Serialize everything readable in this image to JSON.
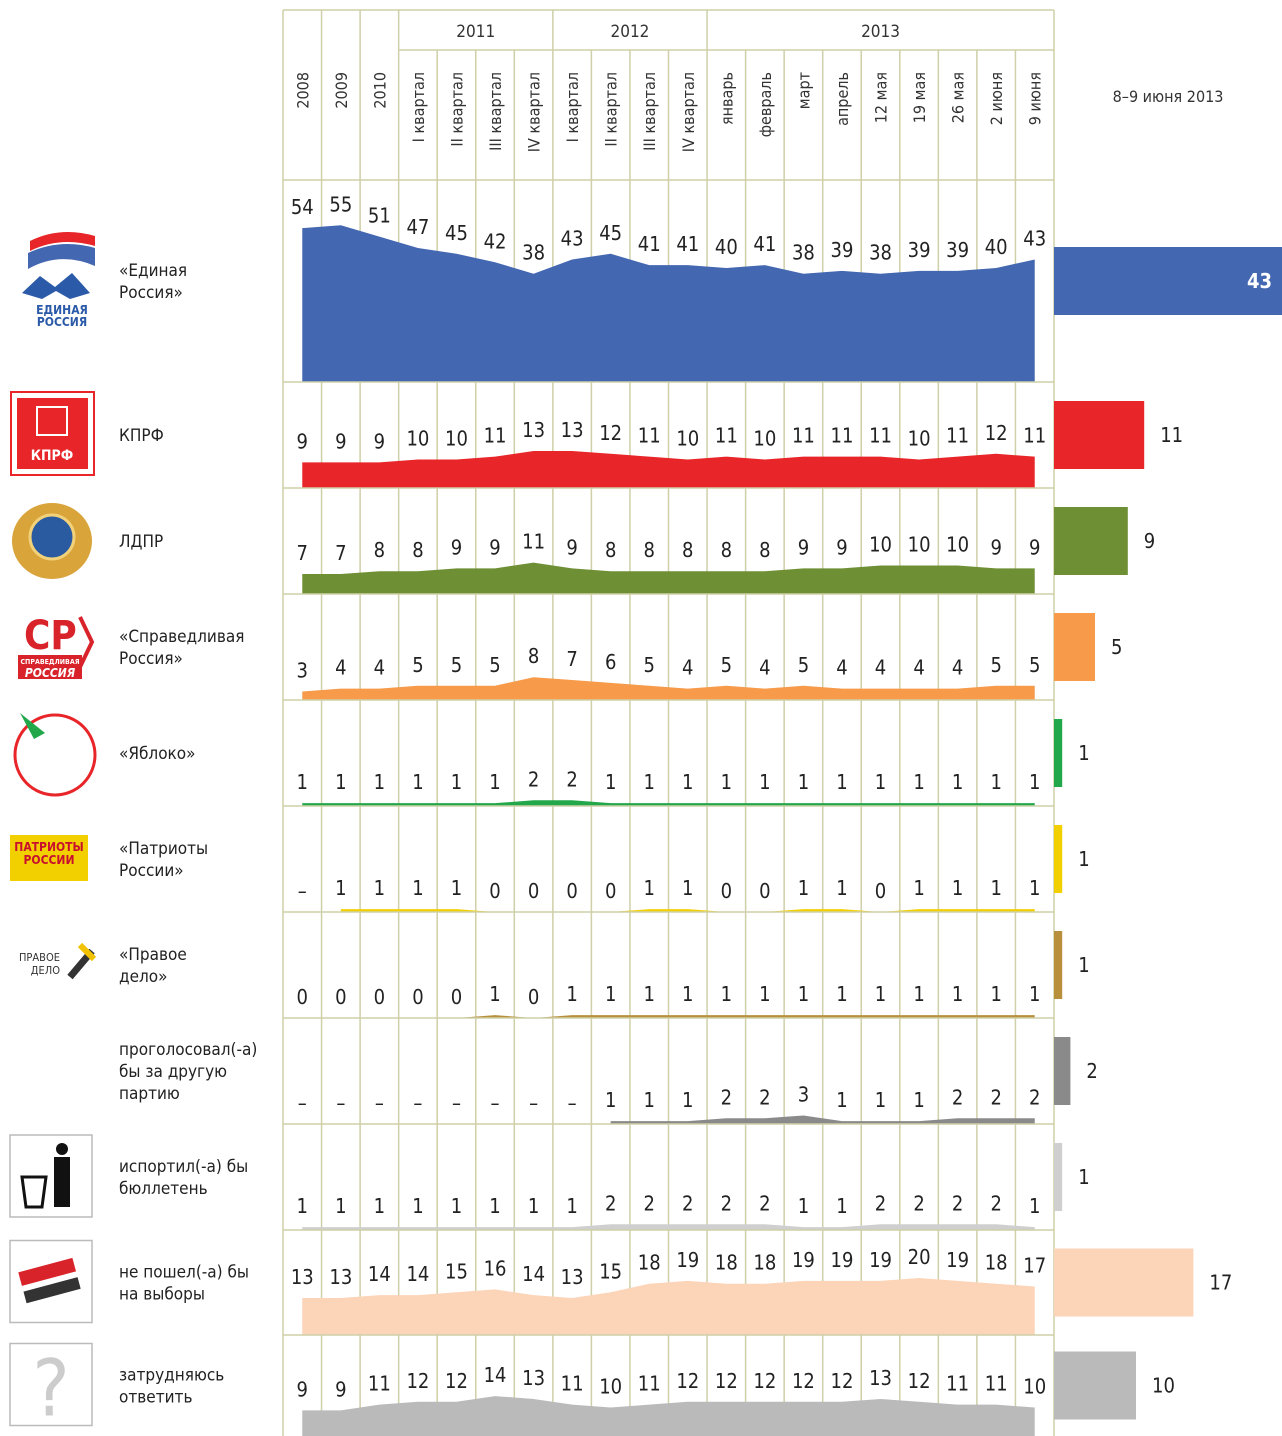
{
  "chart_data": {
    "type": "area",
    "categories": [
      "2008",
      "2009",
      "2010",
      "I квартал",
      "II квартал",
      "III квартал",
      "IV квартал",
      "I квартал",
      "II квартал",
      "III квартал",
      "IV квартал",
      "январь",
      "февраль",
      "март",
      "апрель",
      "12 мая",
      "19 мая",
      "26 мая",
      "2 июня",
      "9 июня"
    ],
    "category_groups": [
      {
        "name": "2011",
        "count": 4
      },
      {
        "name": "2012",
        "count": 4
      },
      {
        "name": "2013",
        "count": 9
      }
    ],
    "snapshot_title": "8–9 июня 2013",
    "series": [
      {
        "name_lines": [
          "«Единая",
          "Россия»"
        ],
        "logo_lines": [
          "ЕДИНАЯ",
          "РОССИЯ"
        ],
        "color": "#4467b1",
        "values": [
          54,
          55,
          51,
          47,
          45,
          42,
          38,
          43,
          45,
          41,
          41,
          40,
          41,
          38,
          39,
          38,
          39,
          39,
          40,
          43
        ],
        "current": 43
      },
      {
        "name_lines": [
          "КПРФ"
        ],
        "logo_lines": [
          "КПРФ"
        ],
        "color": "#e8262a",
        "values": [
          9,
          9,
          9,
          10,
          10,
          11,
          13,
          13,
          12,
          11,
          10,
          11,
          10,
          11,
          11,
          11,
          10,
          11,
          12,
          11
        ],
        "current": 11
      },
      {
        "name_lines": [
          "ЛДПР"
        ],
        "color": "#6f8f35",
        "values": [
          7,
          7,
          8,
          8,
          9,
          9,
          11,
          9,
          8,
          8,
          8,
          8,
          8,
          9,
          9,
          10,
          10,
          10,
          9,
          9
        ],
        "current": 9
      },
      {
        "name_lines": [
          "«Справедливая",
          "Россия»"
        ],
        "logo_lines": [
          "СР",
          "СПРАВЕДЛИВАЯ",
          "РОССИЯ"
        ],
        "color": "#f79a4a",
        "values": [
          3,
          4,
          4,
          5,
          5,
          5,
          8,
          7,
          6,
          5,
          4,
          5,
          4,
          5,
          4,
          4,
          4,
          4,
          5,
          5
        ],
        "current": 5
      },
      {
        "name_lines": [
          "«Яблоко»"
        ],
        "color": "#22a84a",
        "values": [
          1,
          1,
          1,
          1,
          1,
          1,
          2,
          2,
          1,
          1,
          1,
          1,
          1,
          1,
          1,
          1,
          1,
          1,
          1,
          1
        ],
        "current": 1
      },
      {
        "name_lines": [
          "«Патриоты",
          "России»"
        ],
        "logo_lines": [
          "ПАТРИОТЫ",
          "РОССИИ"
        ],
        "color": "#f2d000",
        "values": [
          null,
          1,
          1,
          1,
          1,
          0,
          0,
          0,
          0,
          1,
          1,
          0,
          0,
          1,
          1,
          0,
          1,
          1,
          1,
          1
        ],
        "value_labels": [
          "–",
          "1",
          "1",
          "1",
          "1",
          "0",
          "0",
          "0",
          "0",
          "1",
          "1",
          "0",
          "0",
          "1",
          "1",
          "0",
          "1",
          "1",
          "1",
          "1"
        ],
        "current": 1
      },
      {
        "name_lines": [
          "«Правое",
          "дело»"
        ],
        "logo_lines": [
          "ПРАВОЕ",
          "ДЕЛО"
        ],
        "color": "#b8903c",
        "values": [
          0,
          0,
          0,
          0,
          0,
          1,
          0,
          1,
          1,
          1,
          1,
          1,
          1,
          1,
          1,
          1,
          1,
          1,
          1,
          1
        ],
        "current": 1
      },
      {
        "name_lines": [
          "проголосовал(-а)",
          "бы за другую",
          "партию"
        ],
        "color": "#8a8a8a",
        "values": [
          null,
          null,
          null,
          null,
          null,
          null,
          null,
          null,
          1,
          1,
          1,
          2,
          2,
          3,
          1,
          1,
          1,
          2,
          2,
          2
        ],
        "value_labels": [
          "–",
          "–",
          "–",
          "–",
          "–",
          "–",
          "–",
          "–",
          "1",
          "1",
          "1",
          "2",
          "2",
          "3",
          "1",
          "1",
          "1",
          "2",
          "2",
          "2"
        ],
        "current": 2
      },
      {
        "name_lines": [
          "испортил(-а) бы",
          "бюллетень"
        ],
        "color": "#cfcfcf",
        "values": [
          1,
          1,
          1,
          1,
          1,
          1,
          1,
          1,
          2,
          2,
          2,
          2,
          2,
          1,
          1,
          2,
          2,
          2,
          2,
          1
        ],
        "current": 1
      },
      {
        "name_lines": [
          "не пошел(-а) бы",
          "на выборы"
        ],
        "color": "#fcd4b8",
        "values": [
          13,
          13,
          14,
          14,
          15,
          16,
          14,
          13,
          15,
          18,
          19,
          18,
          18,
          19,
          19,
          19,
          20,
          19,
          18,
          17
        ],
        "current": 17
      },
      {
        "name_lines": [
          "затрудняюсь",
          "ответить"
        ],
        "logo_lines": [
          "?"
        ],
        "color": "#bababa",
        "values": [
          9,
          9,
          11,
          12,
          12,
          14,
          13,
          11,
          10,
          11,
          12,
          12,
          12,
          12,
          12,
          13,
          12,
          11,
          11,
          10
        ],
        "current": 10
      }
    ]
  }
}
